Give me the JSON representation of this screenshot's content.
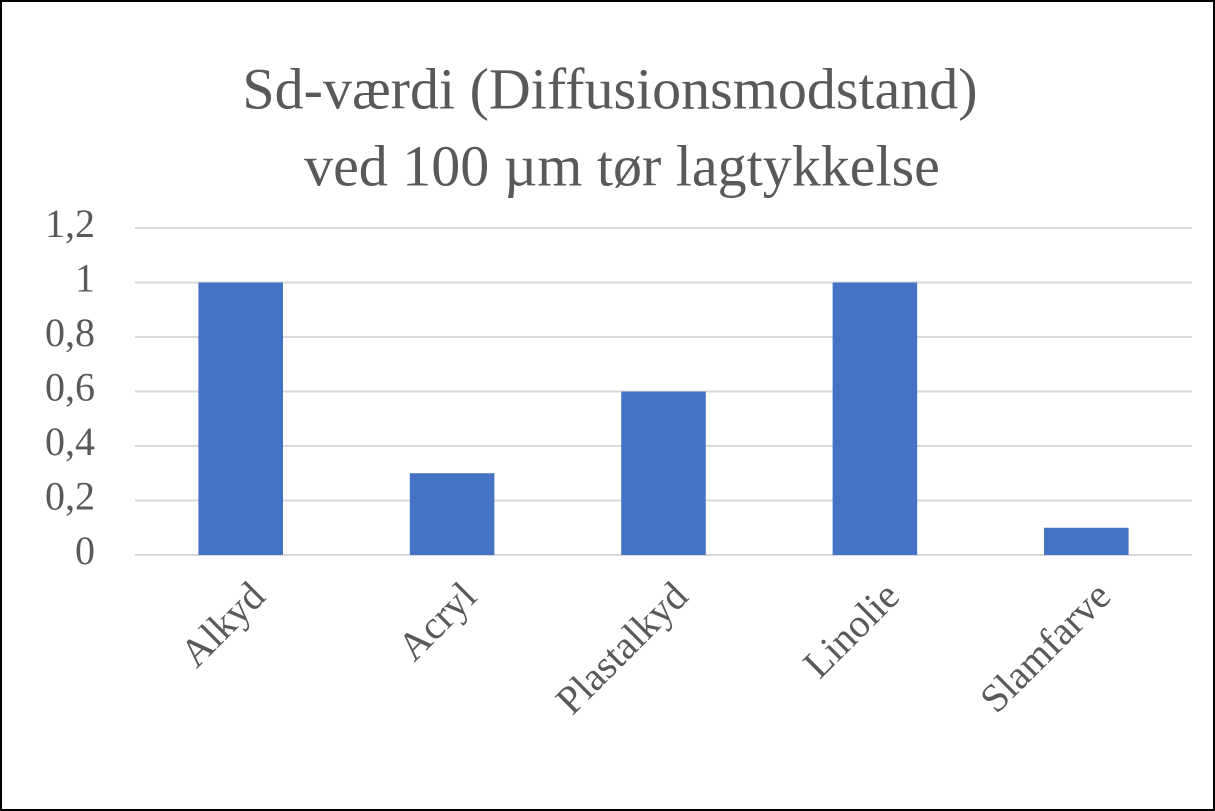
{
  "chart_data": {
    "type": "bar",
    "title": [
      "Sd-værdi (Diffusionsmodstand)",
      "ved 100 µm tør lagtykkelse"
    ],
    "categories": [
      "Alkyd",
      "Acryl",
      "Plastalkyd",
      "Linolie",
      "Slamfarve"
    ],
    "values": [
      1,
      0.3,
      0.6,
      1,
      0.1
    ],
    "color": "#4472c4",
    "ylim": [
      0,
      1.2
    ],
    "yticks": [
      0,
      {
        "value": 0.2,
        "label": "0,2"
      },
      {
        "value": 0.4,
        "label": "0,4"
      },
      {
        "value": 0.6,
        "label": "0,6"
      },
      {
        "value": 0.8,
        "label": "0,8"
      },
      1,
      {
        "value": 1.2,
        "label": "1,2"
      }
    ],
    "grid": true
  }
}
